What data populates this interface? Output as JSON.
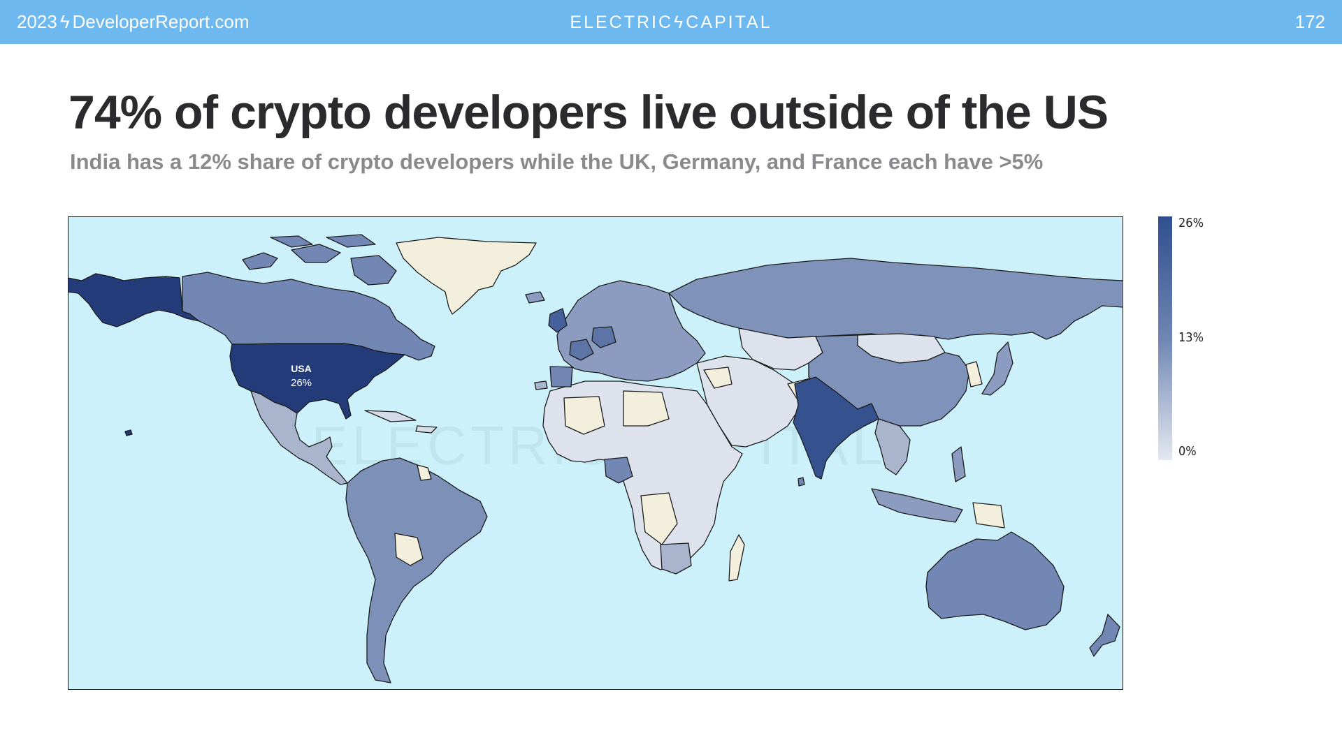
{
  "header": {
    "left_year": "2023",
    "left_site": "DeveloperReport.com",
    "brand_left": "ELECTRIC",
    "brand_right": "CAPITAL",
    "page_number": "172"
  },
  "title": "74% of crypto developers live outside of the US",
  "subtitle": "India has a 12% share of crypto developers while the UK, Germany, and France each have >5%",
  "map": {
    "highlight_label": "USA",
    "highlight_value": "26%",
    "watermark": "ELECTRIC CAPITAL",
    "colors": {
      "ocean": "#cdf1fb",
      "no_data": "#f2efdc",
      "scale_low": "#e4e8f0",
      "scale_mid": "#6f86b3",
      "scale_high": "#2f4f8f"
    }
  },
  "legend": {
    "max_label": "26%",
    "mid_label": "13%",
    "min_label": "0%"
  },
  "country_shares": [
    {
      "country": "USA",
      "share_pct": 26
    },
    {
      "country": "India",
      "share_pct": 12
    }
  ]
}
